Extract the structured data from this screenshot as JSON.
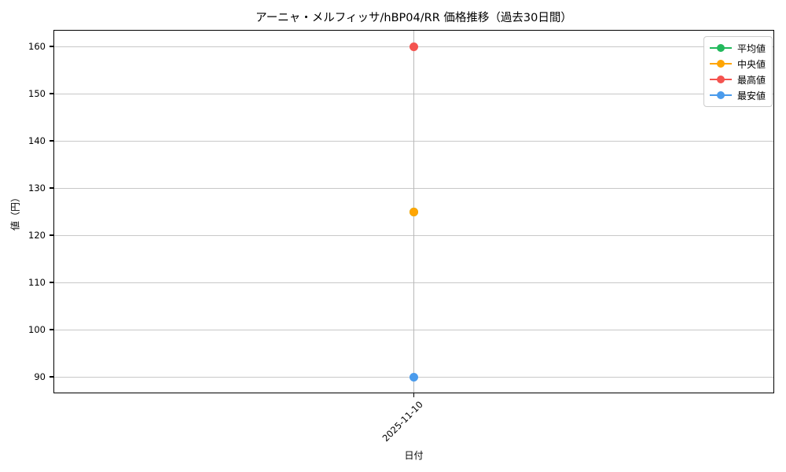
{
  "chart": {
    "title": "アーニャ・メルフィッサ/hBP04/RR 価格推移（過去30日間）",
    "xlabel": "日付",
    "ylabel": "値（円）"
  },
  "chart_data": {
    "type": "line",
    "x": [
      "2025-11-10"
    ],
    "series": [
      {
        "key": "average",
        "name": "平均値",
        "color": "#22b95c",
        "values": [
          125
        ]
      },
      {
        "key": "median",
        "name": "中央値",
        "color": "#ffa502",
        "values": [
          125
        ]
      },
      {
        "key": "max",
        "name": "最高値",
        "color": "#f4534f",
        "values": [
          160
        ]
      },
      {
        "key": "min",
        "name": "最安値",
        "color": "#4a9bec",
        "values": [
          90
        ]
      }
    ],
    "yticks": [
      90,
      100,
      110,
      120,
      130,
      140,
      150,
      160
    ],
    "ylim": [
      86.5,
      163.5
    ],
    "grid": true,
    "legend_position": "upper right",
    "colors": {
      "grid": "#c8c8c8",
      "spine": "#000000",
      "text": "#000000",
      "legend_border": "#cccccc"
    }
  }
}
